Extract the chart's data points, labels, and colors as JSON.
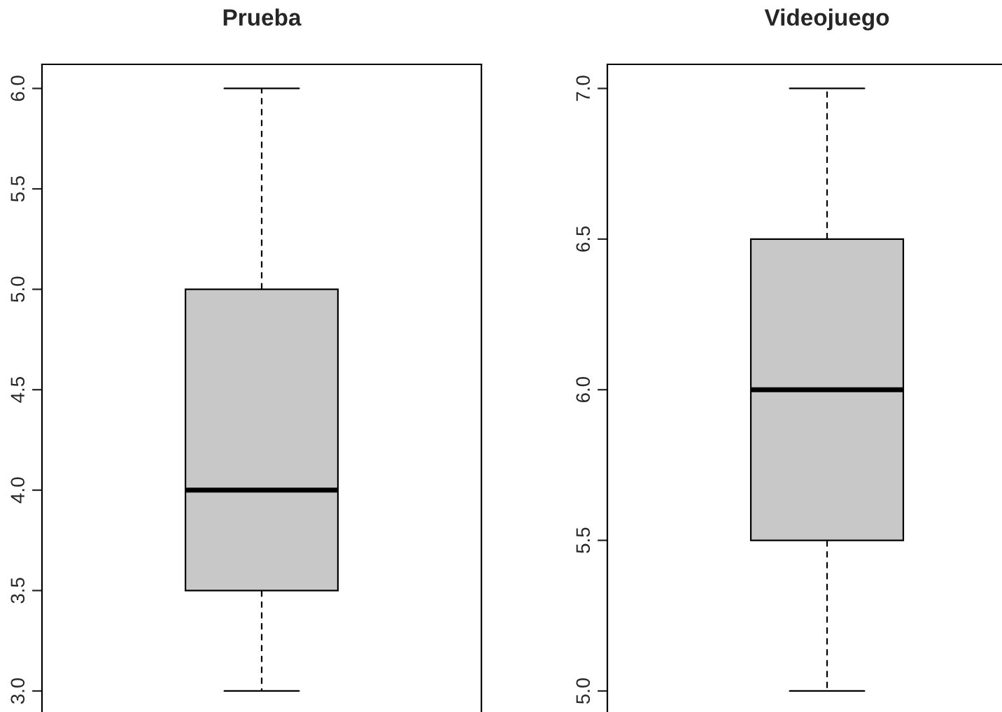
{
  "chart_data": [
    {
      "type": "box",
      "title": "Prueba",
      "categories": [
        null
      ],
      "boxes": [
        {
          "low": 3.0,
          "q1": 3.5,
          "median": 4.0,
          "q3": 5.0,
          "high": 6.0
        }
      ],
      "color": "#c8c8c8",
      "ylim": [
        2.88,
        6.12
      ],
      "yticks": [
        {
          "value": 3,
          "label": "3.0"
        },
        3.5,
        {
          "value": 4,
          "label": "4.0"
        },
        4.5,
        {
          "value": 5,
          "label": "5.0"
        },
        5.5,
        {
          "value": 6,
          "label": "6.0"
        }
      ],
      "tick_labels": "y"
    },
    {
      "type": "box",
      "title": "Videojuego",
      "categories": [
        null
      ],
      "boxes": [
        {
          "low": 5.0,
          "q1": 5.5,
          "median": 6.0,
          "q3": 6.5,
          "high": 7.0
        }
      ],
      "color": "#c8c8c8",
      "ylim": [
        4.92,
        7.08
      ],
      "yticks": [
        {
          "value": 5,
          "label": "5.0"
        },
        5.5,
        {
          "value": 6,
          "label": "6.0"
        },
        6.5,
        {
          "value": 7,
          "label": "7.0"
        }
      ],
      "tick_labels": "y"
    }
  ]
}
